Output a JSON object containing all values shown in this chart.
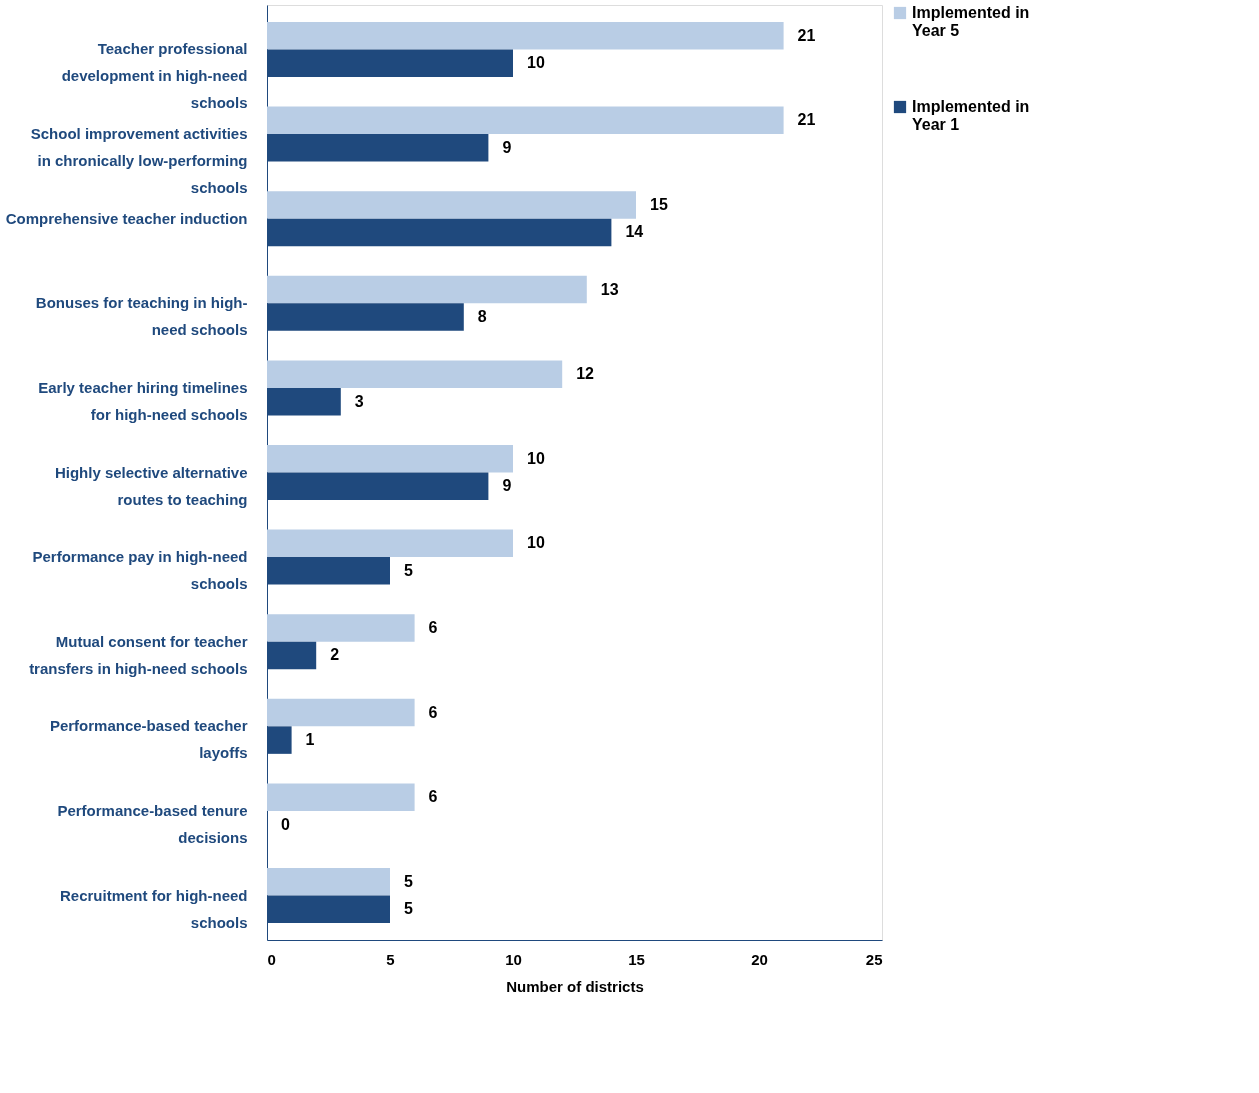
{
  "chart_data": {
    "type": "bar",
    "orientation": "horizontal",
    "xlabel": "Number of districts",
    "categories": [
      "Teacher professional development in high-need schools",
      "School improvement activities in chronically low-performing schools",
      "Comprehensive teacher induction",
      "Bonuses for teaching in high-need schools",
      "Early teacher hiring timelines for high-need schools",
      "Highly selective alternative routes to teaching",
      "Performance pay in high-need schools",
      "Mutual consent for teacher transfers in high-need schools",
      "Performance-based teacher layoffs",
      "Performance-based tenure decisions",
      "Recruitment for high-need schools"
    ],
    "series": [
      {
        "name": "Implemented in Year 5",
        "color": "#b9cde5",
        "values": [
          21,
          21,
          15,
          13,
          12,
          10,
          10,
          6,
          6,
          6,
          5
        ]
      },
      {
        "name": "Implemented in Year 1",
        "color": "#1f497d",
        "values": [
          10,
          9,
          14,
          8,
          3,
          9,
          5,
          2,
          1,
          0,
          5
        ]
      }
    ],
    "xlim": [
      0,
      25
    ],
    "xticks": [
      0,
      5,
      10,
      15,
      20,
      25
    ],
    "grid": false,
    "legend": "right",
    "data_labels": true
  }
}
